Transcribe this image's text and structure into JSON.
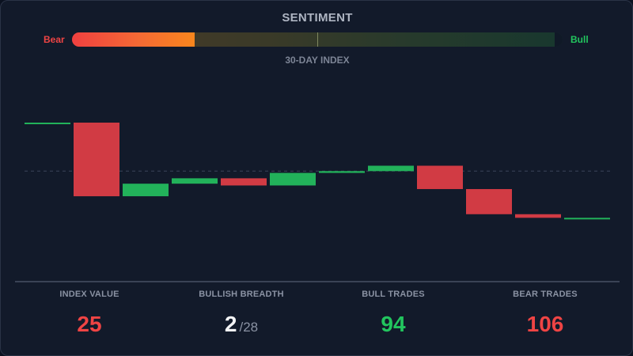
{
  "header": {
    "title": "SENTIMENT",
    "subtitle": "30-DAY INDEX"
  },
  "gauge": {
    "left_label": "Bear",
    "right_label": "Bull",
    "fill_fraction": 0.25,
    "colors": {
      "bear": "#ef4444",
      "bull": "#22c55e",
      "fill_start": "#f04040",
      "fill_end": "#f9861d"
    }
  },
  "chart_data": {
    "type": "bar",
    "subtype": "waterfall",
    "reference_line": 0,
    "steps": [
      {
        "value": 0
      },
      {
        "value": -41
      },
      {
        "value": 7
      },
      {
        "value": 3
      },
      {
        "value": -4
      },
      {
        "value": 7
      },
      {
        "value": 1
      },
      {
        "value": 3
      },
      {
        "value": -13
      },
      {
        "value": -14
      },
      {
        "value": -2
      },
      {
        "value": 0
      }
    ],
    "colors": {
      "up": "#22b25a",
      "down": "#d13b44"
    },
    "grid": false
  },
  "stats": [
    {
      "label": "INDEX VALUE",
      "value": "25",
      "sub": "",
      "color": "#ef4444"
    },
    {
      "label": "BULLISH BREADTH",
      "value": "2",
      "sub": "/28",
      "color": "#f3f4f6"
    },
    {
      "label": "BULL TRADES",
      "value": "94",
      "sub": "",
      "color": "#22c55e"
    },
    {
      "label": "BEAR TRADES",
      "value": "106",
      "sub": "",
      "color": "#ef4444"
    }
  ]
}
